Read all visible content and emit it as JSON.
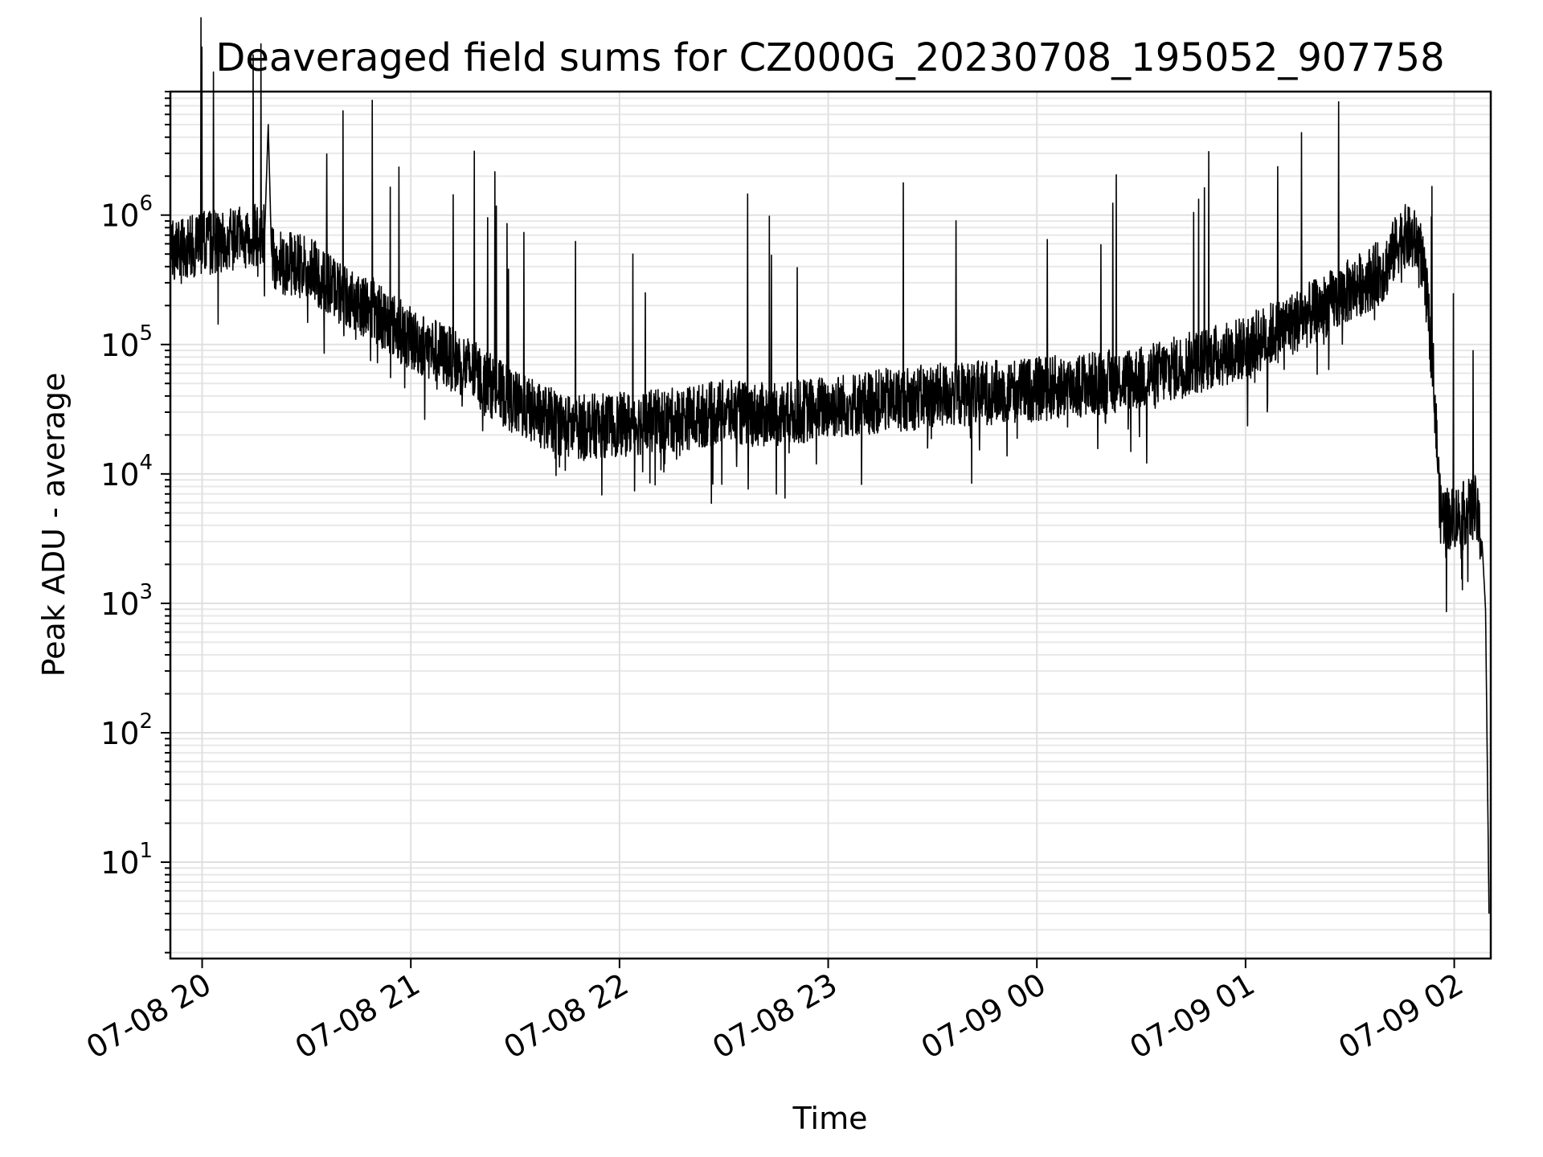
{
  "chart_data": {
    "type": "line",
    "title": "Deaveraged field sums for CZ000G_20230708_195052_907758",
    "xlabel": "Time",
    "ylabel": "Peak ADU - average",
    "y_scale": "log",
    "ylim": [
      1.8,
      9000000
    ],
    "xlim": [
      "2023-07-08 19:50:52",
      "2023-07-09 02:10:30"
    ],
    "x_ticks": [
      {
        "value": "2023-07-08 20:00",
        "label": "07-08 20"
      },
      {
        "value": "2023-07-08 21:00",
        "label": "07-08 21"
      },
      {
        "value": "2023-07-08 22:00",
        "label": "07-08 22"
      },
      {
        "value": "2023-07-08 23:00",
        "label": "07-08 23"
      },
      {
        "value": "2023-07-09 00:00",
        "label": "07-09 00"
      },
      {
        "value": "2023-07-09 01:00",
        "label": "07-09 01"
      },
      {
        "value": "2023-07-09 02:00",
        "label": "07-09 02"
      }
    ],
    "y_ticks": [
      {
        "value": 10,
        "base": "10",
        "exp": "1"
      },
      {
        "value": 100,
        "base": "10",
        "exp": "2"
      },
      {
        "value": 1000,
        "base": "10",
        "exp": "3"
      },
      {
        "value": 10000,
        "base": "10",
        "exp": "4"
      },
      {
        "value": 100000,
        "base": "10",
        "exp": "5"
      },
      {
        "value": 1000000,
        "base": "10",
        "exp": "6"
      }
    ],
    "grid": true,
    "line_color": "#000000",
    "series": [
      {
        "x": [
          "2023-07-08 19:51",
          "2023-07-08 20:00",
          "2023-07-08 20:10",
          "2023-07-08 20:18",
          "2023-07-08 20:19",
          "2023-07-08 20:20",
          "2023-07-08 20:30",
          "2023-07-08 20:40",
          "2023-07-08 20:50",
          "2023-07-08 21:00",
          "2023-07-08 21:15",
          "2023-07-08 21:30",
          "2023-07-08 21:45",
          "2023-07-08 22:00",
          "2023-07-08 22:15",
          "2023-07-08 22:30",
          "2023-07-08 22:45",
          "2023-07-08 23:00",
          "2023-07-08 23:30",
          "2023-07-09 00:00",
          "2023-07-09 00:30",
          "2023-07-09 01:00",
          "2023-07-09 01:20",
          "2023-07-09 01:40",
          "2023-07-09 01:45",
          "2023-07-09 01:50",
          "2023-07-09 01:52",
          "2023-07-09 01:54",
          "2023-07-09 01:56",
          "2023-07-09 01:59",
          "2023-07-09 02:03",
          "2023-07-09 02:06",
          "2023-07-09 02:08",
          "2023-07-09 02:09",
          "2023-07-09 02:10"
        ],
        "y": [
          550000,
          600000,
          650000,
          750000,
          5000000,
          450000,
          400000,
          250000,
          180000,
          110000,
          70000,
          35000,
          23000,
          24000,
          26000,
          30000,
          28000,
          33000,
          40000,
          45000,
          55000,
          95000,
          180000,
          380000,
          700000,
          600000,
          250000,
          60000,
          5000,
          4500,
          5000,
          5500,
          3000,
          900,
          4
        ]
      }
    ]
  }
}
